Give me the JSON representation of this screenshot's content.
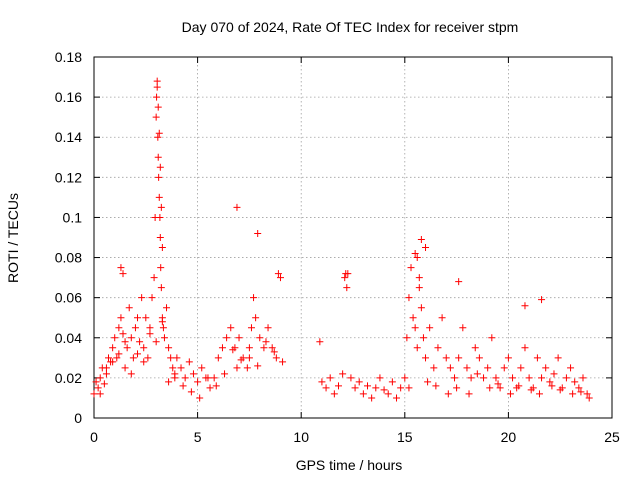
{
  "chart_data": {
    "type": "scatter",
    "title": "Day 070 of 2024, Rate Of TEC Index for receiver stpm",
    "xlabel": "GPS time / hours",
    "ylabel": "ROTI / TECUs",
    "xlim": [
      0,
      25
    ],
    "ylim": [
      0,
      0.18
    ],
    "x_ticks": [
      0,
      5,
      10,
      15,
      20,
      25
    ],
    "x_tick_labels": [
      "0",
      "5",
      "10",
      "15",
      "20",
      "25"
    ],
    "y_ticks": [
      0,
      0.02,
      0.04,
      0.06,
      0.08,
      0.1,
      0.12,
      0.14,
      0.16,
      0.18
    ],
    "y_tick_labels": [
      "0",
      "0.02",
      "0.04",
      "0.06",
      "0.08",
      "0.1",
      "0.12",
      "0.14",
      "0.16",
      "0.18"
    ],
    "grid": true,
    "marker": "+",
    "series": [
      {
        "name": "ROTI",
        "color": "#ff0000",
        "x": [
          0.0,
          0.1,
          0.2,
          0.3,
          0.4,
          0.5,
          0.6,
          0.7,
          0.8,
          0.9,
          1.0,
          1.1,
          1.2,
          1.3,
          1.4,
          1.5,
          1.6,
          1.7,
          1.8,
          1.9,
          2.0,
          2.1,
          2.2,
          2.3,
          2.4,
          2.5,
          2.6,
          2.7,
          2.8,
          2.9,
          2.95,
          3.0,
          3.02,
          3.05,
          3.08,
          3.1,
          3.12,
          3.15,
          3.18,
          3.2,
          3.22,
          3.25,
          3.3,
          3.35,
          3.4,
          3.5,
          3.6,
          3.7,
          3.8,
          3.9,
          4.0,
          4.2,
          4.4,
          4.6,
          4.8,
          5.0,
          5.2,
          5.4,
          5.6,
          5.8,
          6.0,
          6.2,
          6.4,
          6.6,
          6.8,
          6.9,
          7.0,
          7.2,
          7.4,
          7.5,
          7.6,
          7.7,
          7.8,
          8.0,
          8.2,
          8.4,
          8.6,
          8.8,
          9.0,
          9.1,
          10.9,
          11.0,
          11.2,
          11.4,
          11.6,
          11.8,
          12.0,
          12.1,
          12.2,
          12.4,
          12.6,
          12.8,
          13.0,
          13.2,
          13.4,
          13.6,
          13.8,
          14.0,
          14.2,
          14.4,
          14.6,
          14.8,
          15.0,
          15.1,
          15.2,
          15.3,
          15.4,
          15.5,
          15.6,
          15.7,
          15.8,
          15.9,
          16.0,
          16.2,
          16.4,
          16.6,
          16.8,
          17.0,
          17.2,
          17.4,
          17.6,
          17.8,
          18.0,
          18.2,
          18.4,
          18.6,
          18.8,
          19.0,
          19.2,
          19.4,
          19.6,
          19.8,
          20.0,
          20.2,
          20.4,
          20.6,
          20.8,
          21.0,
          21.2,
          21.4,
          21.6,
          21.8,
          22.0,
          22.2,
          22.4,
          22.6,
          22.8,
          23.0,
          23.2,
          23.4,
          23.6,
          23.8,
          23.9,
          0.3,
          0.6,
          0.9,
          1.2,
          1.5,
          1.8,
          2.1,
          2.4,
          2.7,
          3.0,
          3.3,
          3.6,
          3.9,
          4.3,
          4.7,
          5.1,
          5.5,
          5.9,
          6.3,
          6.7,
          7.1,
          7.5,
          7.9,
          8.3,
          8.7,
          15.2,
          15.6,
          16.1,
          16.5,
          17.1,
          17.5,
          18.1,
          18.5,
          19.1,
          19.5,
          20.1,
          20.5,
          21.1,
          21.5,
          22.1,
          22.5,
          23.1,
          23.5,
          1.3,
          1.4,
          3.05,
          3.1,
          3.15,
          3.2,
          3.25,
          3.3,
          6.9,
          7.9,
          8.9,
          15.5,
          15.7,
          15.8,
          16.0,
          12.15,
          12.25,
          21.6,
          20.8,
          17.6
        ],
        "y": [
          0.012,
          0.018,
          0.015,
          0.02,
          0.025,
          0.017,
          0.022,
          0.03,
          0.028,
          0.035,
          0.04,
          0.03,
          0.045,
          0.05,
          0.042,
          0.025,
          0.035,
          0.055,
          0.04,
          0.03,
          0.045,
          0.05,
          0.038,
          0.06,
          0.035,
          0.05,
          0.03,
          0.045,
          0.06,
          0.07,
          0.1,
          0.15,
          0.16,
          0.165,
          0.14,
          0.13,
          0.12,
          0.11,
          0.1,
          0.09,
          0.075,
          0.065,
          0.05,
          0.045,
          0.04,
          0.055,
          0.035,
          0.03,
          0.025,
          0.02,
          0.03,
          0.025,
          0.02,
          0.028,
          0.022,
          0.018,
          0.025,
          0.02,
          0.015,
          0.02,
          0.03,
          0.035,
          0.04,
          0.045,
          0.035,
          0.025,
          0.04,
          0.03,
          0.025,
          0.035,
          0.045,
          0.06,
          0.05,
          0.04,
          0.035,
          0.045,
          0.035,
          0.03,
          0.07,
          0.028,
          0.038,
          0.018,
          0.015,
          0.02,
          0.012,
          0.016,
          0.022,
          0.07,
          0.065,
          0.02,
          0.015,
          0.018,
          0.012,
          0.016,
          0.01,
          0.015,
          0.02,
          0.014,
          0.012,
          0.018,
          0.01,
          0.015,
          0.02,
          0.04,
          0.06,
          0.075,
          0.05,
          0.045,
          0.08,
          0.07,
          0.055,
          0.04,
          0.03,
          0.045,
          0.025,
          0.035,
          0.05,
          0.03,
          0.025,
          0.02,
          0.03,
          0.045,
          0.025,
          0.02,
          0.035,
          0.03,
          0.02,
          0.025,
          0.04,
          0.02,
          0.015,
          0.025,
          0.03,
          0.02,
          0.015,
          0.025,
          0.035,
          0.02,
          0.015,
          0.03,
          0.02,
          0.025,
          0.018,
          0.022,
          0.03,
          0.015,
          0.02,
          0.025,
          0.018,
          0.015,
          0.02,
          0.012,
          0.01,
          0.012,
          0.025,
          0.028,
          0.032,
          0.038,
          0.022,
          0.032,
          0.028,
          0.042,
          0.038,
          0.048,
          0.018,
          0.022,
          0.016,
          0.013,
          0.01,
          0.02,
          0.016,
          0.022,
          0.034,
          0.029,
          0.03,
          0.026,
          0.038,
          0.033,
          0.015,
          0.035,
          0.018,
          0.016,
          0.012,
          0.015,
          0.012,
          0.022,
          0.015,
          0.017,
          0.012,
          0.016,
          0.014,
          0.012,
          0.016,
          0.014,
          0.012,
          0.013,
          0.075,
          0.072,
          0.168,
          0.155,
          0.142,
          0.125,
          0.105,
          0.085,
          0.105,
          0.092,
          0.072,
          0.082,
          0.065,
          0.089,
          0.085,
          0.072,
          0.072,
          0.059,
          0.056,
          0.068
        ]
      }
    ]
  }
}
